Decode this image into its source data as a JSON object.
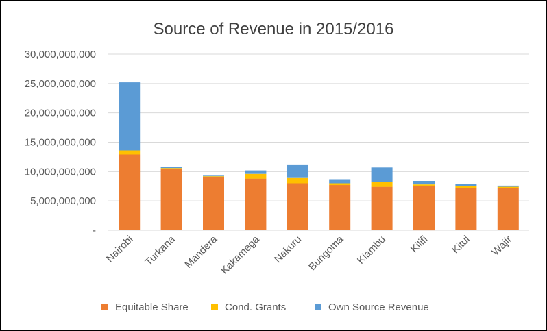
{
  "chart_data": {
    "type": "bar",
    "stacked": true,
    "title": "Source of Revenue in 2015/2016",
    "xlabel": "",
    "ylabel": "",
    "ylim": [
      0,
      30000000000
    ],
    "yticks": [
      {
        "value": 0,
        "label": "-"
      },
      {
        "value": 5000000000,
        "label": "5,000,000,000"
      },
      {
        "value": 10000000000,
        "label": "10,000,000,000"
      },
      {
        "value": 15000000000,
        "label": "15,000,000,000"
      },
      {
        "value": 20000000000,
        "label": "20,000,000,000"
      },
      {
        "value": 25000000000,
        "label": "25,000,000,000"
      },
      {
        "value": 30000000000,
        "label": "30,000,000,000"
      }
    ],
    "grid": true,
    "legend_position": "bottom",
    "categories": [
      "Nairobi",
      "Turkana",
      "Mandera",
      "Kakamega",
      "Nakuru",
      "Bungoma",
      "Kiambu",
      "Kilifi",
      "Kitui",
      "Wajir"
    ],
    "series": [
      {
        "name": "Equitable Share",
        "color": "#ED7D31",
        "values": [
          12900000000,
          10400000000,
          9000000000,
          8800000000,
          8000000000,
          7700000000,
          7400000000,
          7500000000,
          7200000000,
          7200000000
        ]
      },
      {
        "name": "Cond. Grants",
        "color": "#FFC000",
        "values": [
          700000000,
          200000000,
          200000000,
          800000000,
          900000000,
          300000000,
          800000000,
          300000000,
          300000000,
          200000000
        ]
      },
      {
        "name": "Own Source Revenue",
        "color": "#5B9BD5",
        "values": [
          11600000000,
          200000000,
          100000000,
          600000000,
          2200000000,
          700000000,
          2500000000,
          600000000,
          400000000,
          200000000
        ]
      }
    ]
  }
}
